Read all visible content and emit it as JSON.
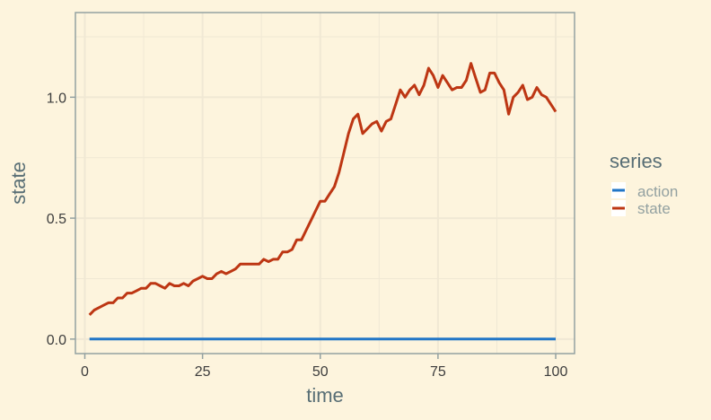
{
  "colors": {
    "background": "#fdf4dd",
    "panel_border": "#93a1a1",
    "grid": "#f0e8d4",
    "action": "#2176c7",
    "state": "#bd3613"
  },
  "chart_data": {
    "type": "line",
    "title": "",
    "xlabel": "time",
    "ylabel": "state",
    "xlim": [
      -2,
      104
    ],
    "ylim": [
      -0.06,
      1.35
    ],
    "x_ticks": [
      0,
      25,
      50,
      75,
      100
    ],
    "x_tick_labels": [
      "0",
      "25",
      "50",
      "75",
      "100"
    ],
    "y_ticks": [
      0,
      0.5,
      1
    ],
    "y_tick_labels": [
      "0.0",
      "0.5",
      "1.0"
    ],
    "grid": true,
    "legend": {
      "title": "series",
      "position": "right"
    },
    "series": [
      {
        "name": "action",
        "color": "#2176c7",
        "x": [
          1,
          100
        ],
        "y": [
          0,
          0
        ]
      },
      {
        "name": "state",
        "color": "#bd3613",
        "x": [
          1,
          2,
          3,
          4,
          5,
          6,
          7,
          8,
          9,
          10,
          11,
          12,
          13,
          14,
          15,
          16,
          17,
          18,
          19,
          20,
          21,
          22,
          23,
          24,
          25,
          26,
          27,
          28,
          29,
          30,
          31,
          32,
          33,
          34,
          35,
          36,
          37,
          38,
          39,
          40,
          41,
          42,
          43,
          44,
          45,
          46,
          47,
          48,
          49,
          50,
          51,
          52,
          53,
          54,
          55,
          56,
          57,
          58,
          59,
          60,
          61,
          62,
          63,
          64,
          65,
          66,
          67,
          68,
          69,
          70,
          71,
          72,
          73,
          74,
          75,
          76,
          77,
          78,
          79,
          80,
          81,
          82,
          83,
          84,
          85,
          86,
          87,
          88,
          89,
          90,
          91,
          92,
          93,
          94,
          95,
          96,
          97,
          98,
          99,
          100
        ],
        "y": [
          0.1,
          0.12,
          0.13,
          0.14,
          0.15,
          0.15,
          0.17,
          0.17,
          0.19,
          0.19,
          0.2,
          0.21,
          0.21,
          0.23,
          0.23,
          0.22,
          0.21,
          0.23,
          0.22,
          0.22,
          0.23,
          0.22,
          0.24,
          0.25,
          0.26,
          0.25,
          0.25,
          0.27,
          0.28,
          0.27,
          0.28,
          0.29,
          0.31,
          0.31,
          0.31,
          0.31,
          0.31,
          0.33,
          0.32,
          0.33,
          0.33,
          0.36,
          0.36,
          0.37,
          0.41,
          0.41,
          0.45,
          0.49,
          0.53,
          0.57,
          0.57,
          0.6,
          0.63,
          0.69,
          0.77,
          0.85,
          0.91,
          0.93,
          0.85,
          0.87,
          0.89,
          0.9,
          0.86,
          0.9,
          0.91,
          0.97,
          1.03,
          1.0,
          1.03,
          1.05,
          1.01,
          1.05,
          1.12,
          1.09,
          1.04,
          1.09,
          1.06,
          1.03,
          1.04,
          1.04,
          1.07,
          1.14,
          1.08,
          1.02,
          1.03,
          1.1,
          1.1,
          1.06,
          1.03,
          0.93,
          1.0,
          1.02,
          1.05,
          0.99,
          1.0,
          1.04,
          1.01,
          1.0,
          0.97,
          0.94
        ]
      }
    ]
  }
}
